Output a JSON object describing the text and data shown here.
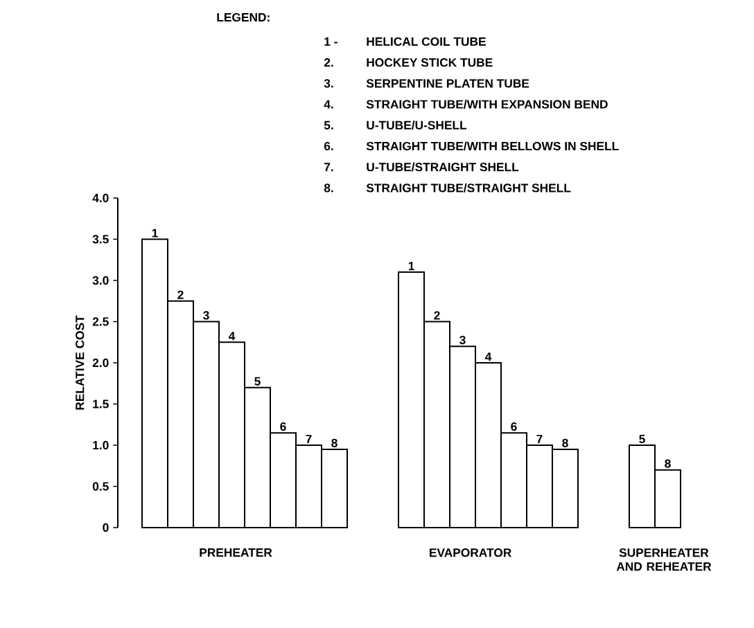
{
  "chart_data": {
    "type": "bar",
    "ylabel": "RELATIVE COST",
    "categories": [
      "1",
      "2",
      "3",
      "4",
      "5",
      "6",
      "7",
      "8",
      null,
      null,
      "1",
      "2",
      "3",
      "4",
      "6",
      "7",
      "8",
      null,
      null,
      "5",
      "8"
    ],
    "values": [
      3.5,
      2.75,
      2.5,
      2.25,
      1.7,
      1.15,
      1.0,
      0.95,
      null,
      null,
      3.1,
      2.5,
      2.2,
      2.0,
      1.15,
      1.0,
      0.95,
      null,
      null,
      1.0,
      0.7
    ],
    "color": "#ffffff",
    "ylim": [
      0,
      4
    ],
    "yticks": [
      0,
      0.5,
      {
        "value": 1,
        "label": "1.0"
      },
      1.5,
      {
        "value": 2,
        "label": "2.0"
      },
      2.5,
      {
        "value": 3,
        "label": "3.0"
      },
      3.5,
      {
        "value": 4,
        "label": "4.0"
      }
    ],
    "annotations": [
      "PREHEATER",
      "EVAPORATOR",
      "SUPERHEATER AND REHEATER",
      "LEGEND:",
      "1 -",
      "HELICAL COIL TUBE",
      "2.",
      "HOCKEY STICK TUBE",
      "3.",
      "SERPENTINE PLATEN TUBE",
      "4.",
      "STRAIGHT TUBE/WITH EXPANSION BEND",
      "5.",
      "U-TUBE/U-SHELL",
      "6.",
      "STRAIGHT TUBE/WITH BELLOWS IN SHELL",
      "7.",
      "U-TUBE/STRAIGHT SHELL",
      "8.",
      "STRAIGHT TUBE/STRAIGHT SHELL"
    ]
  }
}
